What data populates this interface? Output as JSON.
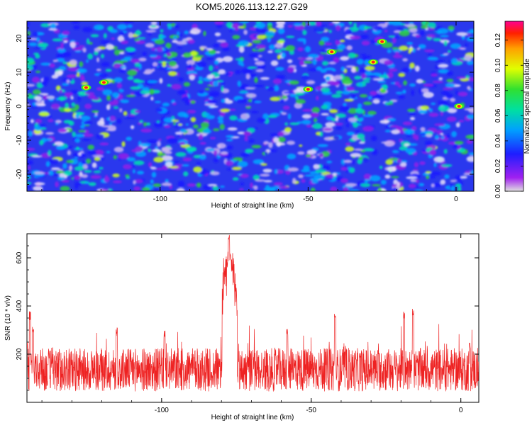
{
  "chart_data": [
    {
      "type": "heatmap",
      "title": "KOM5.2026.113.12.27.G29",
      "xlabel": "Height of straight line (km)",
      "ylabel": "Frequency (Hz)",
      "xlim": [
        -145,
        6
      ],
      "ylim": [
        -25,
        25
      ],
      "xticks": [
        -100,
        -50,
        0
      ],
      "yticks": [
        -20,
        -10,
        0,
        10,
        20
      ],
      "colorbar": {
        "label": "Normalized spectral amplitude",
        "range": [
          0,
          0.135
        ],
        "ticks": [
          "0.00",
          "0.02",
          "0.04",
          "0.06",
          "0.08",
          "0.10",
          "0.12"
        ],
        "colors": [
          "#e0e0e0",
          "#a020f0",
          "#1e1eff",
          "#00a0ff",
          "#00e0a0",
          "#30e030",
          "#e0ff00",
          "#ffa000",
          "#ff2000",
          "#ff0090"
        ]
      },
      "hot_spots": [
        {
          "x": -125,
          "y": 5.5,
          "value": 0.12
        },
        {
          "x": -119,
          "y": 7,
          "value": 0.115
        },
        {
          "x": -25,
          "y": 19,
          "value": 0.12
        },
        {
          "x": 1,
          "y": 0,
          "value": 0.11
        },
        {
          "x": -50,
          "y": 5,
          "value": 0.1
        },
        {
          "x": -42,
          "y": 16,
          "value": 0.1
        },
        {
          "x": -28,
          "y": 13,
          "value": 0.1
        }
      ]
    },
    {
      "type": "line",
      "xlabel": "Height of straight line (km)",
      "ylabel": "SNR (10 * v/v)",
      "xlim": [
        -145,
        6
      ],
      "ylim": [
        0,
        700
      ],
      "xticks": [
        -100,
        -50,
        0
      ],
      "yticks": [
        200,
        400,
        600
      ],
      "series_color": "#ee2222",
      "baseline_mean": 100,
      "noise_amplitude": 90,
      "peaks": [
        {
          "x": -145,
          "y": 250
        },
        {
          "x": -144,
          "y": 380
        },
        {
          "x": -143,
          "y": 330
        },
        {
          "x": -115,
          "y": 310
        },
        {
          "x": -99,
          "y": 300
        },
        {
          "x": -78,
          "y": 600
        },
        {
          "x": -77.5,
          "y": 700
        },
        {
          "x": -77,
          "y": 620
        },
        {
          "x": -76.5,
          "y": 560
        },
        {
          "x": -58,
          "y": 320
        },
        {
          "x": -42,
          "y": 380
        },
        {
          "x": -19,
          "y": 380
        },
        {
          "x": -16,
          "y": 400
        },
        {
          "x": 3,
          "y": 260
        }
      ]
    }
  ]
}
